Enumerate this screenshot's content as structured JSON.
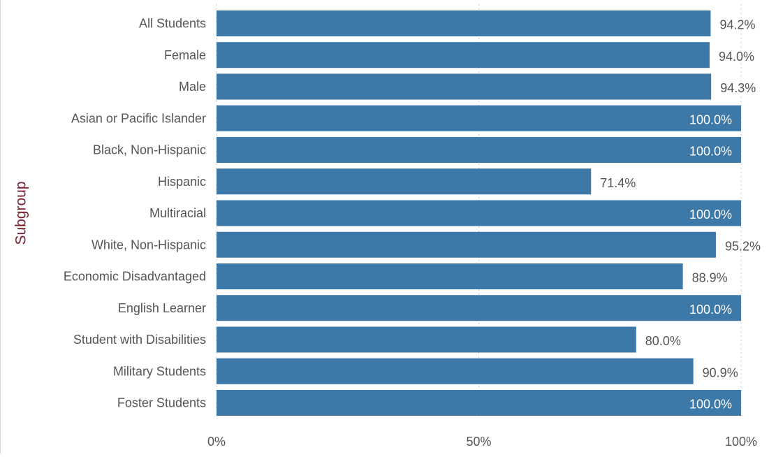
{
  "colors": {
    "bar": "#3c78a8",
    "label_outside": "#555555",
    "label_inside": "#ffffff",
    "y_title": "#7a2030",
    "grid": "#cfcfcf"
  },
  "chart_data": {
    "type": "bar",
    "orientation": "horizontal",
    "title": "",
    "xlabel": "",
    "ylabel": "Subgroup",
    "xlim": [
      0,
      100
    ],
    "value_unit": "%",
    "grid": true,
    "legend": "none",
    "x_ticks": [
      {
        "value": 0,
        "label": "0%"
      },
      {
        "value": 50,
        "label": "50%"
      },
      {
        "value": 100,
        "label": "100%"
      }
    ],
    "categories": [
      "All Students",
      "Female",
      "Male",
      "Asian or Pacific Islander",
      "Black, Non-Hispanic",
      "Hispanic",
      "Multiracial",
      "White, Non-Hispanic",
      "Economic Disadvantaged",
      "English Learner",
      "Student with Disabilities",
      "Military Students",
      "Foster Students"
    ],
    "values": [
      94.2,
      94.0,
      94.3,
      100.0,
      100.0,
      71.4,
      100.0,
      95.2,
      88.9,
      100.0,
      80.0,
      90.9,
      100.0
    ],
    "value_labels": [
      "94.2%",
      "94.0%",
      "94.3%",
      "100.0%",
      "100.0%",
      "71.4%",
      "100.0%",
      "95.2%",
      "88.9%",
      "100.0%",
      "80.0%",
      "90.9%",
      "100.0%"
    ]
  }
}
